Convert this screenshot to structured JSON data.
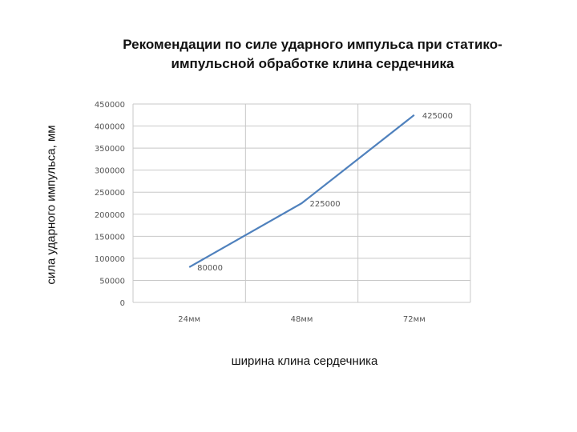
{
  "chart_data": {
    "type": "line",
    "title_lines": [
      "Рекомендации по силе ударного импульса при статико-",
      "импульсной обработке клина сердечника"
    ],
    "xlabel": "ширина клина сердечника",
    "ylabel": "сила ударного импульса, мм",
    "categories": [
      "24мм",
      "48мм",
      "72мм"
    ],
    "series": [
      {
        "values": [
          80000,
          225000,
          425000
        ],
        "color": "#4f81bd"
      }
    ],
    "data_labels": [
      "80000",
      "225000",
      "425000"
    ],
    "ylim": [
      0,
      450000
    ],
    "yticks": [
      0,
      50000,
      100000,
      150000,
      200000,
      250000,
      300000,
      350000,
      400000,
      450000
    ],
    "grid": true
  }
}
